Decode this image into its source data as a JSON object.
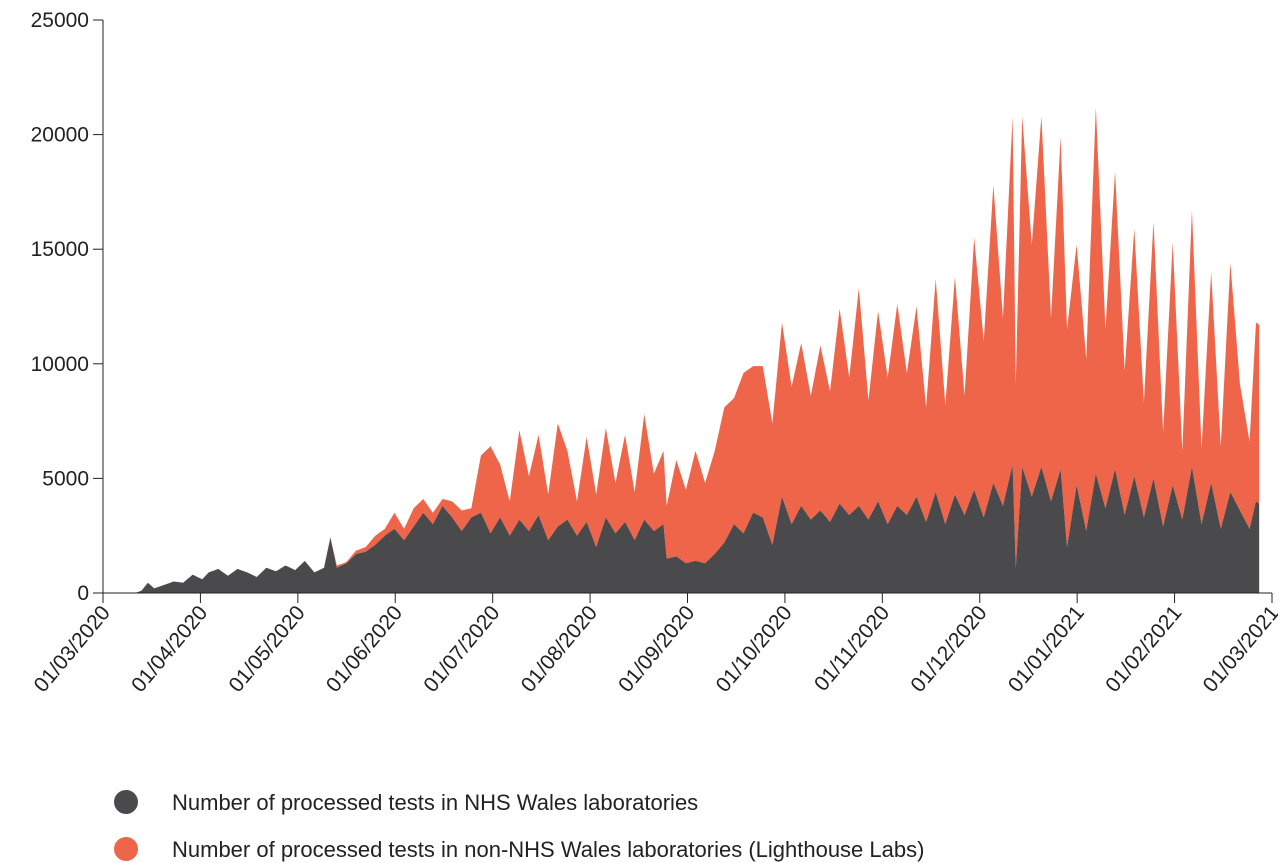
{
  "chart_data": {
    "type": "area",
    "stacked": true,
    "x_start": "2020-03-01",
    "x_end": "2021-03-01",
    "ylim": [
      0,
      25000
    ],
    "yticks": [
      0,
      5000,
      10000,
      15000,
      20000,
      25000
    ],
    "xticks": [
      "01/03/2020",
      "01/04/2020",
      "01/05/2020",
      "01/06/2020",
      "01/07/2020",
      "01/08/2020",
      "01/09/2020",
      "01/10/2020",
      "01/11/2020",
      "01/12/2020",
      "01/01/2021",
      "01/02/2021",
      "01/03/2021"
    ],
    "grid": false,
    "legend_position": "bottom",
    "series": [
      {
        "name": "Number of processed tests in NHS Wales laboratories",
        "color": "#4a4a4c",
        "points": [
          [
            "2020-03-11",
            0
          ],
          [
            "2020-03-13",
            100
          ],
          [
            "2020-03-15",
            450
          ],
          [
            "2020-03-17",
            200
          ],
          [
            "2020-03-20",
            350
          ],
          [
            "2020-03-23",
            500
          ],
          [
            "2020-03-26",
            450
          ],
          [
            "2020-03-29",
            800
          ],
          [
            "2020-04-01",
            600
          ],
          [
            "2020-04-03",
            900
          ],
          [
            "2020-04-06",
            1050
          ],
          [
            "2020-04-09",
            750
          ],
          [
            "2020-04-12",
            1050
          ],
          [
            "2020-04-15",
            900
          ],
          [
            "2020-04-18",
            700
          ],
          [
            "2020-04-21",
            1100
          ],
          [
            "2020-04-24",
            950
          ],
          [
            "2020-04-27",
            1200
          ],
          [
            "2020-04-30",
            1000
          ],
          [
            "2020-05-03",
            1400
          ],
          [
            "2020-05-06",
            900
          ],
          [
            "2020-05-09",
            1100
          ],
          [
            "2020-05-11",
            2400
          ],
          [
            "2020-05-13",
            1100
          ],
          [
            "2020-05-16",
            1300
          ],
          [
            "2020-05-19",
            1700
          ],
          [
            "2020-05-22",
            1800
          ],
          [
            "2020-05-25",
            2100
          ],
          [
            "2020-05-28",
            2500
          ],
          [
            "2020-05-31",
            2800
          ],
          [
            "2020-06-03",
            2300
          ],
          [
            "2020-06-06",
            2900
          ],
          [
            "2020-06-09",
            3500
          ],
          [
            "2020-06-12",
            3000
          ],
          [
            "2020-06-15",
            3800
          ],
          [
            "2020-06-18",
            3300
          ],
          [
            "2020-06-21",
            2700
          ],
          [
            "2020-06-24",
            3300
          ],
          [
            "2020-06-27",
            3500
          ],
          [
            "2020-06-30",
            2600
          ],
          [
            "2020-07-03",
            3300
          ],
          [
            "2020-07-06",
            2500
          ],
          [
            "2020-07-09",
            3200
          ],
          [
            "2020-07-12",
            2700
          ],
          [
            "2020-07-15",
            3400
          ],
          [
            "2020-07-18",
            2300
          ],
          [
            "2020-07-21",
            2900
          ],
          [
            "2020-07-24",
            3200
          ],
          [
            "2020-07-27",
            2500
          ],
          [
            "2020-07-30",
            3100
          ],
          [
            "2020-08-02",
            2000
          ],
          [
            "2020-08-05",
            3300
          ],
          [
            "2020-08-08",
            2600
          ],
          [
            "2020-08-11",
            3100
          ],
          [
            "2020-08-14",
            2300
          ],
          [
            "2020-08-17",
            3200
          ],
          [
            "2020-08-20",
            2700
          ],
          [
            "2020-08-23",
            3000
          ],
          [
            "2020-08-24",
            1500
          ],
          [
            "2020-08-27",
            1600
          ],
          [
            "2020-08-30",
            1300
          ],
          [
            "2020-09-02",
            1400
          ],
          [
            "2020-09-05",
            1300
          ],
          [
            "2020-09-08",
            1700
          ],
          [
            "2020-09-11",
            2200
          ],
          [
            "2020-09-14",
            3000
          ],
          [
            "2020-09-17",
            2600
          ],
          [
            "2020-09-20",
            3500
          ],
          [
            "2020-09-23",
            3300
          ],
          [
            "2020-09-26",
            2100
          ],
          [
            "2020-09-29",
            4200
          ],
          [
            "2020-10-02",
            3000
          ],
          [
            "2020-10-05",
            3800
          ],
          [
            "2020-10-08",
            3200
          ],
          [
            "2020-10-11",
            3600
          ],
          [
            "2020-10-14",
            3100
          ],
          [
            "2020-10-17",
            3900
          ],
          [
            "2020-10-20",
            3400
          ],
          [
            "2020-10-23",
            3800
          ],
          [
            "2020-10-26",
            3200
          ],
          [
            "2020-10-29",
            4000
          ],
          [
            "2020-11-01",
            3000
          ],
          [
            "2020-11-04",
            3800
          ],
          [
            "2020-11-07",
            3400
          ],
          [
            "2020-11-10",
            4200
          ],
          [
            "2020-11-13",
            3100
          ],
          [
            "2020-11-16",
            4400
          ],
          [
            "2020-11-19",
            3000
          ],
          [
            "2020-11-22",
            4300
          ],
          [
            "2020-11-25",
            3400
          ],
          [
            "2020-11-28",
            4500
          ],
          [
            "2020-12-01",
            3300
          ],
          [
            "2020-12-04",
            4800
          ],
          [
            "2020-12-07",
            3800
          ],
          [
            "2020-12-10",
            5600
          ],
          [
            "2020-12-11",
            1100
          ],
          [
            "2020-12-13",
            5500
          ],
          [
            "2020-12-16",
            4200
          ],
          [
            "2020-12-19",
            5500
          ],
          [
            "2020-12-22",
            4000
          ],
          [
            "2020-12-25",
            5400
          ],
          [
            "2020-12-27",
            2000
          ],
          [
            "2020-12-30",
            4700
          ],
          [
            "2021-01-02",
            2700
          ],
          [
            "2021-01-05",
            5200
          ],
          [
            "2021-01-08",
            3700
          ],
          [
            "2021-01-11",
            5400
          ],
          [
            "2021-01-14",
            3400
          ],
          [
            "2021-01-17",
            5100
          ],
          [
            "2021-01-20",
            3300
          ],
          [
            "2021-01-23",
            5000
          ],
          [
            "2021-01-26",
            2900
          ],
          [
            "2021-01-29",
            4700
          ],
          [
            "2021-02-01",
            3200
          ],
          [
            "2021-02-04",
            5500
          ],
          [
            "2021-02-07",
            3000
          ],
          [
            "2021-02-10",
            4800
          ],
          [
            "2021-02-13",
            2800
          ],
          [
            "2021-02-16",
            4400
          ],
          [
            "2021-02-19",
            3600
          ],
          [
            "2021-02-22",
            2800
          ],
          [
            "2021-02-24",
            4000
          ],
          [
            "2021-02-25",
            3900
          ]
        ]
      },
      {
        "name": "Number of processed tests in non-NHS Wales laboratories (Lighthouse Labs)",
        "color": "#ee654a",
        "points": [
          [
            "2020-03-11",
            0
          ],
          [
            "2020-05-09",
            0
          ],
          [
            "2020-05-13",
            100
          ],
          [
            "2020-05-16",
            50
          ],
          [
            "2020-05-19",
            150
          ],
          [
            "2020-05-22",
            200
          ],
          [
            "2020-05-25",
            400
          ],
          [
            "2020-05-28",
            300
          ],
          [
            "2020-05-31",
            700
          ],
          [
            "2020-06-03",
            500
          ],
          [
            "2020-06-06",
            800
          ],
          [
            "2020-06-09",
            600
          ],
          [
            "2020-06-12",
            500
          ],
          [
            "2020-06-15",
            300
          ],
          [
            "2020-06-18",
            700
          ],
          [
            "2020-06-21",
            900
          ],
          [
            "2020-06-24",
            400
          ],
          [
            "2020-06-27",
            2500
          ],
          [
            "2020-06-30",
            3800
          ],
          [
            "2020-07-03",
            2300
          ],
          [
            "2020-07-06",
            1500
          ],
          [
            "2020-07-09",
            3900
          ],
          [
            "2020-07-12",
            2400
          ],
          [
            "2020-07-15",
            3500
          ],
          [
            "2020-07-18",
            2000
          ],
          [
            "2020-07-21",
            4500
          ],
          [
            "2020-07-24",
            3000
          ],
          [
            "2020-07-27",
            1500
          ],
          [
            "2020-07-30",
            3700
          ],
          [
            "2020-08-02",
            2300
          ],
          [
            "2020-08-05",
            3900
          ],
          [
            "2020-08-08",
            2200
          ],
          [
            "2020-08-11",
            3800
          ],
          [
            "2020-08-14",
            2100
          ],
          [
            "2020-08-17",
            4600
          ],
          [
            "2020-08-20",
            2500
          ],
          [
            "2020-08-23",
            3200
          ],
          [
            "2020-08-24",
            2300
          ],
          [
            "2020-08-27",
            4200
          ],
          [
            "2020-08-30",
            3200
          ],
          [
            "2020-09-02",
            4800
          ],
          [
            "2020-09-05",
            3500
          ],
          [
            "2020-09-08",
            4500
          ],
          [
            "2020-09-11",
            5900
          ],
          [
            "2020-09-14",
            5500
          ],
          [
            "2020-09-17",
            7000
          ],
          [
            "2020-09-20",
            6400
          ],
          [
            "2020-09-23",
            6600
          ],
          [
            "2020-09-26",
            5300
          ],
          [
            "2020-09-29",
            7600
          ],
          [
            "2020-10-02",
            6000
          ],
          [
            "2020-10-05",
            7100
          ],
          [
            "2020-10-08",
            5400
          ],
          [
            "2020-10-11",
            7200
          ],
          [
            "2020-10-14",
            5700
          ],
          [
            "2020-10-17",
            8500
          ],
          [
            "2020-10-20",
            6000
          ],
          [
            "2020-10-23",
            9500
          ],
          [
            "2020-10-26",
            5200
          ],
          [
            "2020-10-29",
            8300
          ],
          [
            "2020-11-01",
            6400
          ],
          [
            "2020-11-04",
            8800
          ],
          [
            "2020-11-07",
            6200
          ],
          [
            "2020-11-10",
            8300
          ],
          [
            "2020-11-13",
            5000
          ],
          [
            "2020-11-16",
            9300
          ],
          [
            "2020-11-19",
            5200
          ],
          [
            "2020-11-22",
            9500
          ],
          [
            "2020-11-25",
            5200
          ],
          [
            "2020-11-28",
            11000
          ],
          [
            "2020-12-01",
            7700
          ],
          [
            "2020-12-04",
            13000
          ],
          [
            "2020-12-07",
            8200
          ],
          [
            "2020-12-10",
            15200
          ],
          [
            "2020-12-11",
            8000
          ],
          [
            "2020-12-13",
            15300
          ],
          [
            "2020-12-16",
            11000
          ],
          [
            "2020-12-19",
            15300
          ],
          [
            "2020-12-22",
            8000
          ],
          [
            "2020-12-25",
            14500
          ],
          [
            "2020-12-27",
            9500
          ],
          [
            "2020-12-30",
            10500
          ],
          [
            "2021-01-02",
            7500
          ],
          [
            "2021-01-05",
            16000
          ],
          [
            "2021-01-08",
            7800
          ],
          [
            "2021-01-11",
            13000
          ],
          [
            "2021-01-14",
            6300
          ],
          [
            "2021-01-17",
            10800
          ],
          [
            "2021-01-20",
            5000
          ],
          [
            "2021-01-23",
            11200
          ],
          [
            "2021-01-26",
            4100
          ],
          [
            "2021-01-29",
            10600
          ],
          [
            "2021-02-01",
            3000
          ],
          [
            "2021-02-04",
            11200
          ],
          [
            "2021-02-07",
            3300
          ],
          [
            "2021-02-10",
            9200
          ],
          [
            "2021-02-13",
            3600
          ],
          [
            "2021-02-16",
            10000
          ],
          [
            "2021-02-19",
            5500
          ],
          [
            "2021-02-22",
            3800
          ],
          [
            "2021-02-24",
            7800
          ],
          [
            "2021-02-25",
            7800
          ]
        ]
      }
    ]
  }
}
